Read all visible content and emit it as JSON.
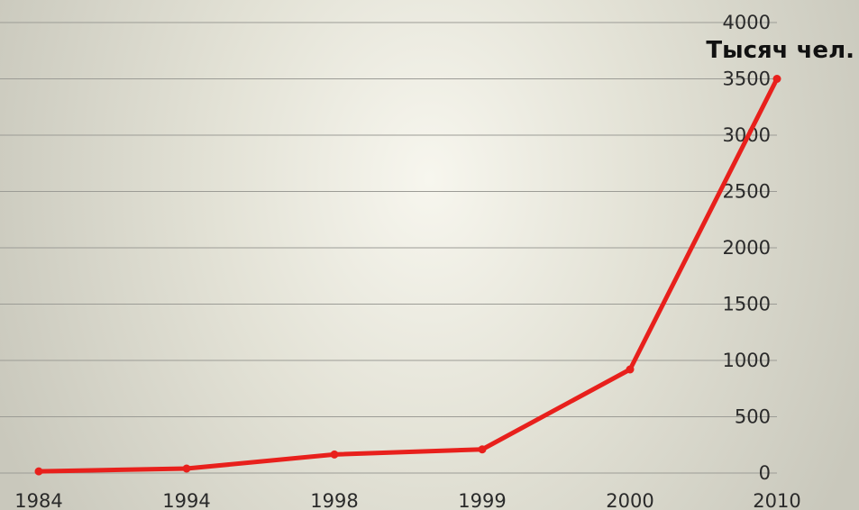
{
  "chart_data": {
    "type": "line",
    "categories": [
      "1984",
      "1994",
      "1998",
      "1999",
      "2000",
      "2010"
    ],
    "series": [
      {
        "values": [
          15,
          40,
          165,
          210,
          920,
          3500
        ],
        "color": "#e8201c"
      }
    ],
    "ylabel": "Тысяч чел.",
    "ylim": [
      0,
      4000
    ],
    "yticks": [
      "0",
      "500",
      "1000",
      "1500",
      "2000",
      "2500",
      "3000",
      "3500",
      "4000"
    ],
    "y_axis_position": "right",
    "grid": true,
    "legend": "none"
  }
}
